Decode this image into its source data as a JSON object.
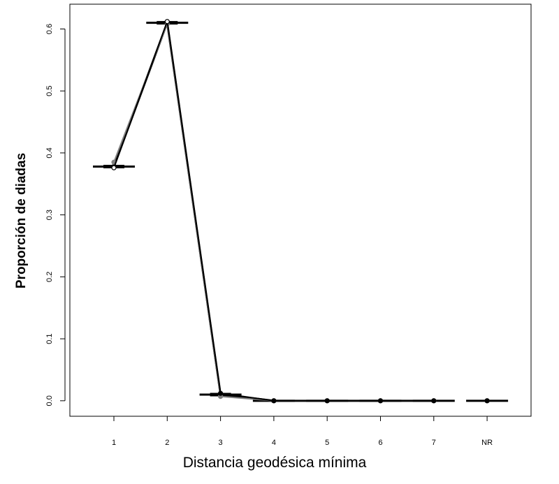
{
  "chart_data": {
    "type": "line",
    "title": "",
    "xlabel": "Distancia geodésica mínima",
    "ylabel": "Proporción de diadas",
    "categories": [
      "1",
      "2",
      "3",
      "4",
      "5",
      "6",
      "7",
      "NR"
    ],
    "ylim": [
      -0.025,
      0.64
    ],
    "yticks": [
      "0.0",
      "0.1",
      "0.2",
      "0.3",
      "0.4",
      "0.5",
      "0.6"
    ],
    "grid": false,
    "legend": "none",
    "series": [
      {
        "values": [
          0.378,
          0.61,
          0.01,
          0.0,
          0.0,
          0.0,
          0.0,
          0.0
        ]
      },
      {
        "values": [
          0.385,
          0.608,
          0.007,
          0.0,
          0.0,
          0.0,
          0.0,
          0.0
        ]
      },
      {
        "values": [
          0.376,
          0.612,
          0.012,
          0.0,
          0.0,
          0.0,
          0.0,
          0.0
        ]
      }
    ],
    "reference_segments": [
      {
        "category": "1",
        "value": 0.378
      },
      {
        "category": "2",
        "value": 0.61
      },
      {
        "category": "3",
        "value": 0.01
      },
      {
        "category": "4",
        "value": 0.0
      },
      {
        "category": "5",
        "value": 0.0
      },
      {
        "category": "6",
        "value": 0.0
      },
      {
        "category": "7",
        "value": 0.0
      },
      {
        "category": "NR",
        "value": 0.0
      }
    ],
    "colors": {
      "series": [
        "#000000",
        "#7f7f7f",
        "#000000"
      ],
      "reference": "#000000"
    }
  }
}
